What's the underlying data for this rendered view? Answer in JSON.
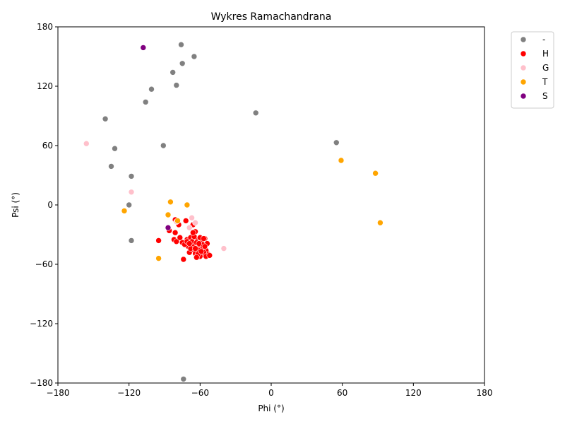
{
  "chart_data": {
    "type": "scatter",
    "title": "Wykres Ramachandrana",
    "xlabel": "Phi (°)",
    "ylabel": "Psi (°)",
    "xlim": [
      -180,
      180
    ],
    "ylim": [
      -180,
      180
    ],
    "xticks": [
      -180,
      -120,
      -60,
      0,
      60,
      120,
      180
    ],
    "yticks": [
      -180,
      -120,
      -60,
      0,
      60,
      120,
      180
    ],
    "xtick_labels": [
      "−180",
      "−120",
      "−60",
      "0",
      "60",
      "120",
      "180"
    ],
    "ytick_labels": [
      "−180",
      "−120",
      "−60",
      "0",
      "60",
      "120",
      "180"
    ],
    "grid": false,
    "legend_position": "outside-top-right",
    "series": [
      {
        "name": "-",
        "color": "#808080",
        "points": [
          [
            -76,
            162
          ],
          [
            -65,
            150
          ],
          [
            -75,
            143
          ],
          [
            -83,
            134
          ],
          [
            -80,
            121
          ],
          [
            -101,
            117
          ],
          [
            -106,
            104
          ],
          [
            -140,
            87
          ],
          [
            -13,
            93
          ],
          [
            -132,
            57
          ],
          [
            -91,
            60
          ],
          [
            -135,
            39
          ],
          [
            -118,
            29
          ],
          [
            -120,
            0
          ],
          [
            -118,
            -36
          ],
          [
            55,
            63
          ],
          [
            -74,
            -176
          ]
        ]
      },
      {
        "name": "H",
        "color": "#ff0000",
        "points": [
          [
            -95,
            -36
          ],
          [
            -86,
            -26
          ],
          [
            -81,
            -28
          ],
          [
            -81,
            -15
          ],
          [
            -78,
            -20
          ],
          [
            -72,
            -16
          ],
          [
            -66,
            -20
          ],
          [
            -82,
            -35
          ],
          [
            -75,
            -38
          ],
          [
            -71,
            -35
          ],
          [
            -68,
            -33
          ],
          [
            -64,
            -27
          ],
          [
            -62,
            -35
          ],
          [
            -59,
            -37
          ],
          [
            -56,
            -34
          ],
          [
            -54,
            -39
          ],
          [
            -70,
            -42
          ],
          [
            -66,
            -45
          ],
          [
            -62,
            -42
          ],
          [
            -58,
            -44
          ],
          [
            -55,
            -46
          ],
          [
            -53,
            -50
          ],
          [
            -64,
            -49
          ],
          [
            -60,
            -52
          ],
          [
            -57,
            -48
          ],
          [
            -69,
            -48
          ],
          [
            -66,
            -40
          ],
          [
            -61,
            -46
          ],
          [
            -58,
            -40
          ],
          [
            -73,
            -40
          ],
          [
            -74,
            -55
          ],
          [
            -67,
            -37
          ],
          [
            -63,
            -38
          ],
          [
            -60,
            -33
          ],
          [
            -56,
            -42
          ],
          [
            -65,
            -32
          ],
          [
            -68,
            -44
          ],
          [
            -62,
            -50
          ],
          [
            -55,
            -52
          ],
          [
            -59,
            -47
          ],
          [
            -52,
            -51
          ],
          [
            -71,
            -37
          ],
          [
            -57,
            -34
          ],
          [
            -64,
            -44
          ],
          [
            -80,
            -37
          ],
          [
            -77,
            -33
          ],
          [
            -66,
            -28
          ],
          [
            -63,
            -53
          ],
          [
            -69,
            -39
          ],
          [
            -61,
            -39
          ]
        ]
      },
      {
        "name": "G",
        "color": "#ffc0cb",
        "points": [
          [
            -156,
            62
          ],
          [
            -118,
            13
          ],
          [
            -67,
            -13
          ],
          [
            -80,
            -17
          ],
          [
            -69,
            -23
          ],
          [
            -40,
            -44
          ],
          [
            -64,
            -18
          ]
        ]
      },
      {
        "name": "T",
        "color": "#ffa500",
        "points": [
          [
            59,
            45
          ],
          [
            88,
            32
          ],
          [
            92,
            -18
          ],
          [
            -85,
            3
          ],
          [
            -71,
            0
          ],
          [
            -124,
            -6
          ],
          [
            -87,
            -10
          ],
          [
            -95,
            -54
          ],
          [
            -79,
            -16
          ]
        ]
      },
      {
        "name": "S",
        "color": "#800080",
        "points": [
          [
            -108,
            159
          ],
          [
            -87,
            -23
          ]
        ]
      }
    ]
  }
}
